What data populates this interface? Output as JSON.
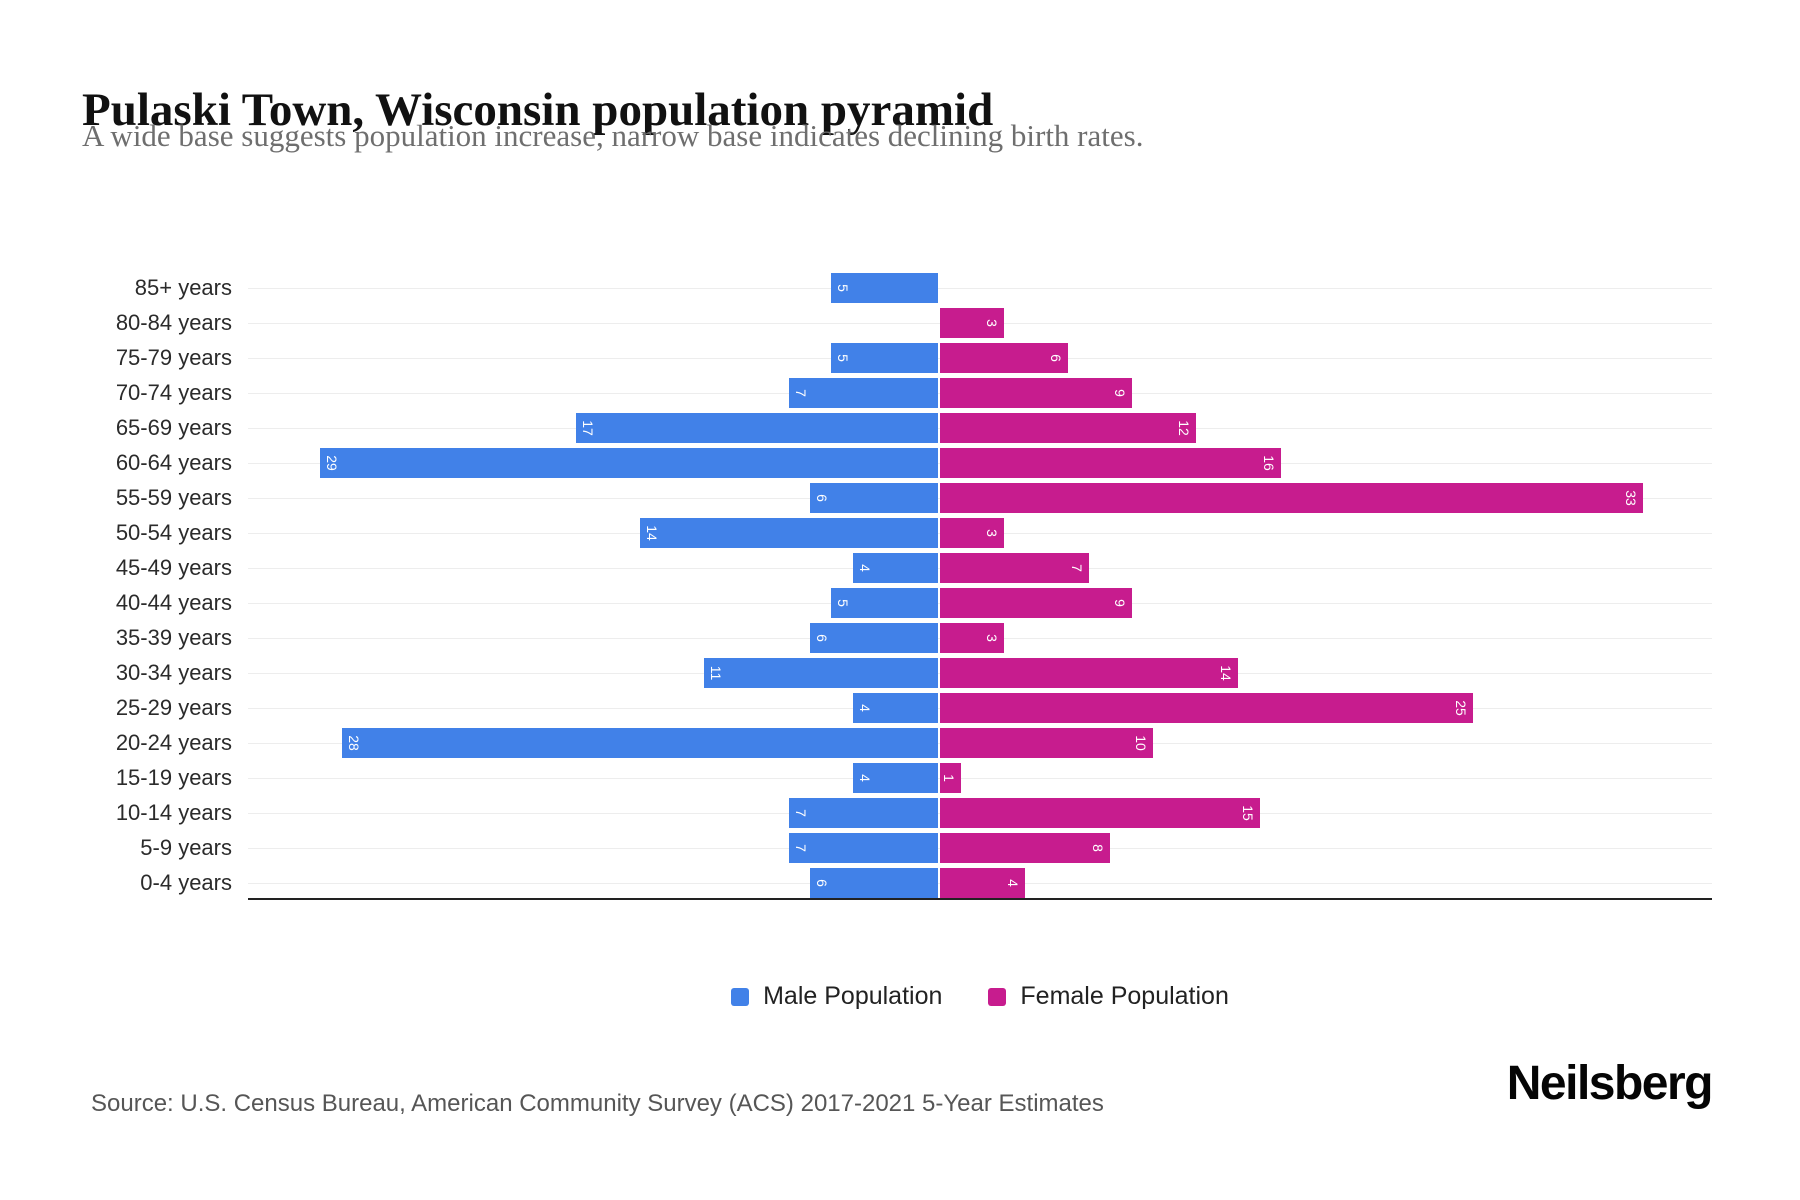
{
  "header": {
    "title": "Pulaski Town, Wisconsin population pyramid",
    "subtitle": "A wide base suggests population increase, narrow base indicates declining birth rates."
  },
  "footer": {
    "source": "Source: U.S. Census Bureau, American Community Survey (ACS) 2017-2021 5-Year Estimates",
    "brand": "Neilsberg"
  },
  "colors": {
    "male": "#4181e8",
    "female": "#c71c8e",
    "grid": "#ededed",
    "axis": "#222222",
    "bar_value_text": "#ffffff"
  },
  "chart_data": {
    "type": "bar",
    "subtype": "population_pyramid",
    "orientation": "horizontal",
    "title": "Pulaski Town, Wisconsin population pyramid",
    "xlabel": "",
    "ylabel": "",
    "categories": [
      "85+ years",
      "80-84 years",
      "75-79 years",
      "70-74 years",
      "65-69 years",
      "60-64 years",
      "55-59 years",
      "50-54 years",
      "45-49 years",
      "40-44 years",
      "35-39 years",
      "30-34 years",
      "25-29 years",
      "20-24 years",
      "15-19 years",
      "10-14 years",
      "5-9 years",
      "0-4 years"
    ],
    "series": [
      {
        "name": "Male Population",
        "side": "left",
        "color": "#4181e8",
        "values": [
          5,
          0,
          5,
          7,
          17,
          29,
          6,
          14,
          4,
          5,
          6,
          11,
          4,
          28,
          4,
          7,
          7,
          6
        ]
      },
      {
        "name": "Female Population",
        "side": "right",
        "color": "#c71c8e",
        "values": [
          0,
          3,
          6,
          9,
          12,
          16,
          33,
          3,
          7,
          9,
          3,
          14,
          25,
          10,
          1,
          15,
          8,
          4
        ]
      }
    ],
    "value_labels": "inside outer end of each bar, rotated 90deg, white",
    "grid": "light horizontal line at each category",
    "x_tick_labels_visible": false,
    "legend_position": "bottom-center"
  }
}
